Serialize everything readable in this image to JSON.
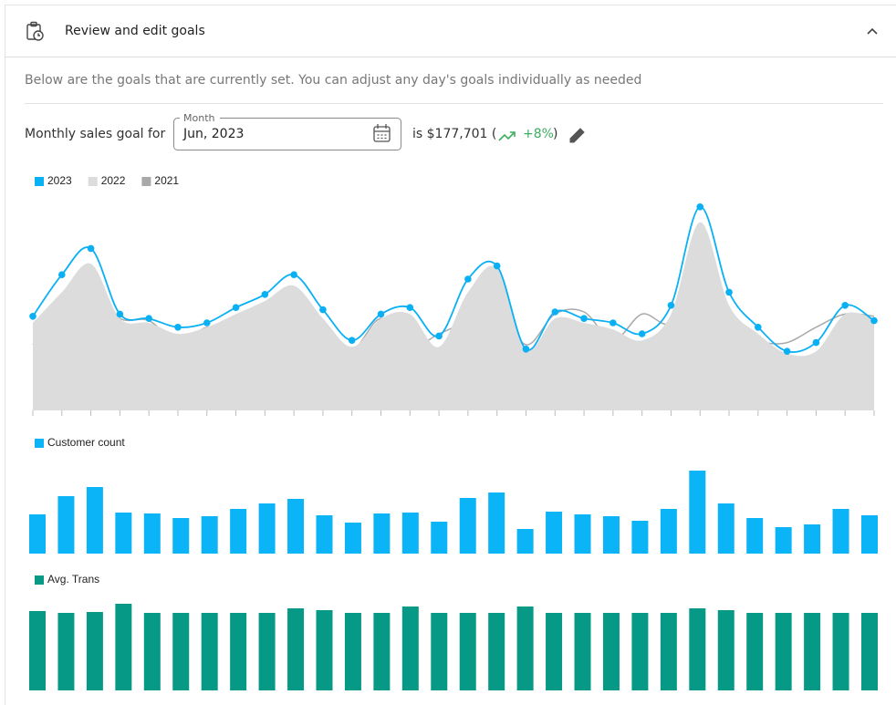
{
  "header": {
    "title": "Review and edit goals"
  },
  "description": "Below are the goals that are currently set. You can adjust any day's goals individually as needed",
  "goal": {
    "prefix": "Monthly sales goal for",
    "field_label": "Month",
    "field_value": "Jun, 2023",
    "amount_text": "is $177,701 (",
    "change": "+8%",
    "close": ")"
  },
  "chart_data": [
    {
      "type": "line",
      "categories": [
        null,
        null,
        null,
        null,
        null,
        null,
        null,
        null,
        null,
        null,
        null,
        null,
        null,
        null,
        null,
        null,
        null,
        null,
        null,
        null,
        null,
        null,
        null,
        null,
        null,
        null,
        null,
        null,
        null,
        null
      ],
      "ylim": [
        0,
        100
      ],
      "series": [
        {
          "name": "2023",
          "color": "#0ab0f4",
          "kind": "line",
          "markers": true,
          "values": [
            43,
            62,
            74,
            44,
            42,
            38,
            40,
            47,
            53,
            62,
            46,
            32,
            44,
            47,
            34,
            60,
            66,
            28,
            45,
            42,
            40,
            35,
            48,
            93,
            54,
            38,
            27,
            31,
            48,
            41
          ]
        },
        {
          "name": "2022",
          "color": "#dcdcdc",
          "kind": "area",
          "values": [
            40,
            54,
            67,
            42,
            40,
            35,
            38,
            44,
            50,
            57,
            42,
            29,
            42,
            44,
            29,
            54,
            65,
            28,
            42,
            40,
            37,
            32,
            44,
            86,
            48,
            35,
            26,
            27,
            44,
            42
          ]
        },
        {
          "name": "2021",
          "color": "#a9a9a9",
          "kind": "line",
          "values": [
            30,
            48,
            55,
            42,
            41,
            31,
            38,
            37,
            44,
            49,
            41,
            28,
            42,
            29,
            35,
            41,
            49,
            30,
            44,
            45,
            32,
            44,
            40,
            62,
            32,
            31,
            31,
            38,
            44,
            43
          ]
        }
      ]
    },
    {
      "type": "bar",
      "ylim": [
        0,
        100
      ],
      "series": [
        {
          "name": "Customer count",
          "color": "#0ab4f7",
          "values": [
            43,
            63,
            73,
            45,
            44,
            39,
            41,
            49,
            55,
            60,
            42,
            34,
            44,
            45,
            35,
            61,
            67,
            27,
            46,
            43,
            41,
            36,
            49,
            91,
            55,
            39,
            29,
            32,
            49,
            42
          ]
        }
      ]
    },
    {
      "type": "bar",
      "ylim": [
        0,
        100
      ],
      "series": [
        {
          "name": "Avg. Trans",
          "color": "#069a86",
          "values": [
            87,
            85,
            86,
            95,
            85,
            85,
            85,
            85,
            85,
            90,
            88,
            85,
            85,
            92,
            85,
            85,
            85,
            92,
            85,
            85,
            85,
            85,
            85,
            90,
            88,
            85,
            85,
            85,
            85,
            85
          ]
        }
      ]
    }
  ]
}
